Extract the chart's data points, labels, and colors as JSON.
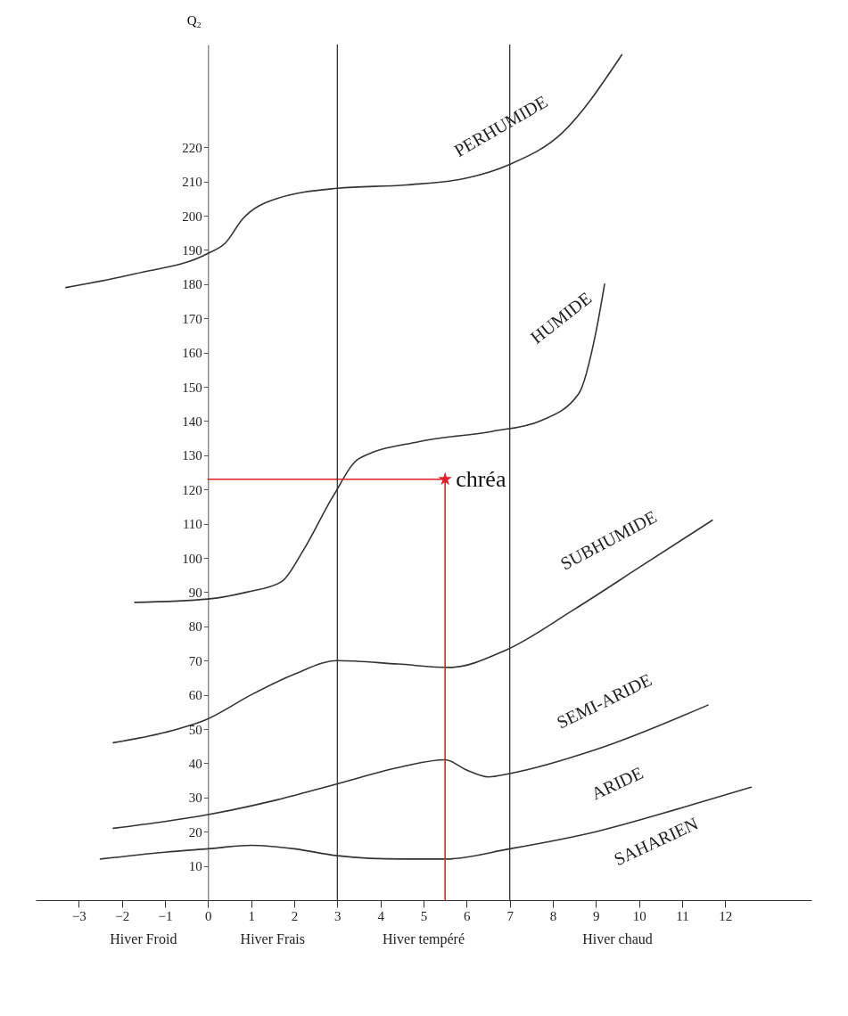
{
  "chart_data": {
    "type": "line",
    "ylabel": "Q₂",
    "xlim": [
      -4,
      14
    ],
    "ylim": [
      0,
      250
    ],
    "xticks": [
      -3,
      -2,
      -1,
      0,
      1,
      2,
      3,
      4,
      5,
      6,
      7,
      8,
      9,
      10,
      11,
      12
    ],
    "yticks": [
      10,
      20,
      30,
      40,
      50,
      60,
      70,
      80,
      90,
      100,
      110,
      120,
      130,
      140,
      150,
      160,
      170,
      180,
      190,
      200,
      210,
      220
    ],
    "grid": false,
    "series": [
      {
        "color": "#333333",
        "x": [
          -3.3,
          -1.7,
          0,
          0.4,
          0.8,
          1.6,
          3,
          4.6,
          6,
          7,
          8.2,
          9.6
        ],
        "values": [
          179,
          183,
          189,
          192,
          199,
          205,
          208,
          209,
          211,
          215,
          224,
          247
        ]
      },
      {
        "color": "#333333",
        "x": [
          -1.7,
          0,
          0.9,
          1.7,
          2.2,
          2.9,
          3.5,
          4.9,
          6.6,
          7.7,
          8.6,
          9,
          9.2
        ],
        "values": [
          87,
          88,
          90,
          93,
          102,
          118,
          129,
          134,
          137,
          140,
          148,
          166,
          180
        ]
      },
      {
        "color": "#333333",
        "x": [
          -2.2,
          -1,
          0,
          1,
          2,
          3,
          4.4,
          5.6,
          6.9,
          8.5,
          10.1,
          11.7
        ],
        "values": [
          46,
          49,
          53,
          60,
          66,
          70,
          69,
          68,
          73,
          85,
          98,
          111
        ]
      },
      {
        "color": "#333333",
        "x": [
          -2.2,
          -1,
          0,
          1.5,
          3,
          4.5,
          5.5,
          6,
          6.5,
          7,
          9,
          11.6
        ],
        "values": [
          21,
          23,
          25,
          29,
          34,
          39,
          41,
          38,
          36,
          37,
          44,
          57
        ]
      },
      {
        "color": "#333333",
        "x": [
          -2.5,
          -1,
          0,
          1,
          2,
          3,
          4.5,
          5.5,
          7,
          9,
          11,
          12.6
        ],
        "values": [
          12,
          14,
          15,
          16,
          15,
          13,
          12,
          12,
          15,
          20,
          27,
          33
        ]
      },
      {
        "color": "#e02028",
        "x": [
          0,
          5.5
        ],
        "values": [
          123,
          123
        ]
      },
      {
        "color": "#e02028",
        "x": [
          5.5,
          5.5
        ],
        "values": [
          123,
          0
        ]
      },
      {
        "type": "scatter",
        "name": "chréa",
        "color": "#e02028",
        "marker": "star",
        "x": [
          5.5
        ],
        "values": [
          123
        ]
      }
    ],
    "ref_lines": [
      {
        "axis": "x",
        "value": 3,
        "color": "#333333"
      },
      {
        "axis": "x",
        "value": 7,
        "color": "#333333"
      }
    ],
    "annotations": [
      "PERHUMIDE",
      "HUMIDE",
      "SUBHUMIDE",
      "SEMI-ARIDE",
      "ARIDE",
      "SAHARIEN",
      "Hiver Froid",
      "Hiver Frais",
      "Hiver tempéré",
      "Hiver chaud"
    ]
  }
}
